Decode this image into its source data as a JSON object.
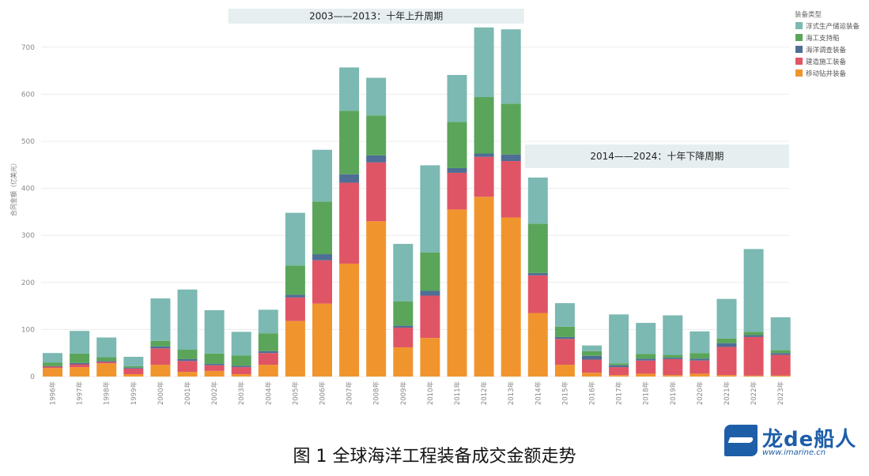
{
  "figure": {
    "caption": "图 1 全球海洋工程装备成交金额走势",
    "logo_name": "龙de船人",
    "logo_url": "www.imarine.cn"
  },
  "chart_data": {
    "type": "bar",
    "stacked": true,
    "ylabel": "合同金额（亿美元）",
    "ylim": [
      0,
      750
    ],
    "yticks": [
      0,
      100,
      200,
      300,
      400,
      500,
      600,
      700
    ],
    "grid": true,
    "legend_title": "装备类型",
    "legend_position": "top-right",
    "categories": [
      "1996年",
      "1997年",
      "1998年",
      "1999年",
      "2000年",
      "2001年",
      "2002年",
      "2003年",
      "2004年",
      "2005年",
      "2006年",
      "2007年",
      "2008年",
      "2009年",
      "2010年",
      "2011年",
      "2012年",
      "2013年",
      "2014年",
      "2015年",
      "2016年",
      "2017年",
      "2018年",
      "2019年",
      "2020年",
      "2021年",
      "2022年",
      "2023年"
    ],
    "series": [
      {
        "name": "移动钻井装备",
        "color": "#f0952e",
        "values": [
          18,
          20,
          28,
          5,
          25,
          10,
          12,
          5,
          25,
          118,
          155,
          240,
          330,
          62,
          82,
          355,
          382,
          338,
          135,
          25,
          8,
          3,
          6,
          3,
          6,
          3,
          2,
          2
        ]
      },
      {
        "name": "建造施工装备",
        "color": "#e05565",
        "values": [
          3,
          6,
          3,
          12,
          35,
          23,
          12,
          15,
          25,
          50,
          92,
          172,
          125,
          42,
          90,
          78,
          85,
          120,
          80,
          55,
          28,
          17,
          28,
          34,
          28,
          60,
          82,
          44
        ]
      },
      {
        "name": "海洋调查装备",
        "color": "#4e6e95",
        "values": [
          1,
          3,
          2,
          2,
          4,
          4,
          3,
          3,
          4,
          6,
          13,
          18,
          15,
          4,
          10,
          10,
          7,
          14,
          5,
          4,
          8,
          4,
          4,
          3,
          4,
          8,
          4,
          4
        ]
      },
      {
        "name": "海工支持船",
        "color": "#5aa55a",
        "values": [
          8,
          20,
          8,
          3,
          12,
          20,
          22,
          22,
          38,
          62,
          112,
          135,
          85,
          52,
          82,
          98,
          120,
          108,
          105,
          22,
          10,
          4,
          10,
          6,
          12,
          10,
          7,
          6
        ]
      },
      {
        "name": "浮式生产储运装备",
        "color": "#7bb9b2",
        "values": [
          20,
          48,
          42,
          20,
          90,
          128,
          92,
          50,
          50,
          112,
          110,
          92,
          80,
          122,
          185,
          100,
          148,
          158,
          98,
          50,
          12,
          104,
          66,
          84,
          46,
          84,
          176,
          70
        ]
      }
    ],
    "legend_order": [
      "浮式生产储运装备",
      "海工支持船",
      "海洋调查装备",
      "建造施工装备",
      "移动钻井装备"
    ],
    "annotations": [
      {
        "text": "2003——2013：十年上升周期",
        "from": "2003年",
        "to": "2013年"
      },
      {
        "text": "2014——2024：十年下降周期",
        "from": "2014年",
        "to": "2023年"
      }
    ]
  }
}
